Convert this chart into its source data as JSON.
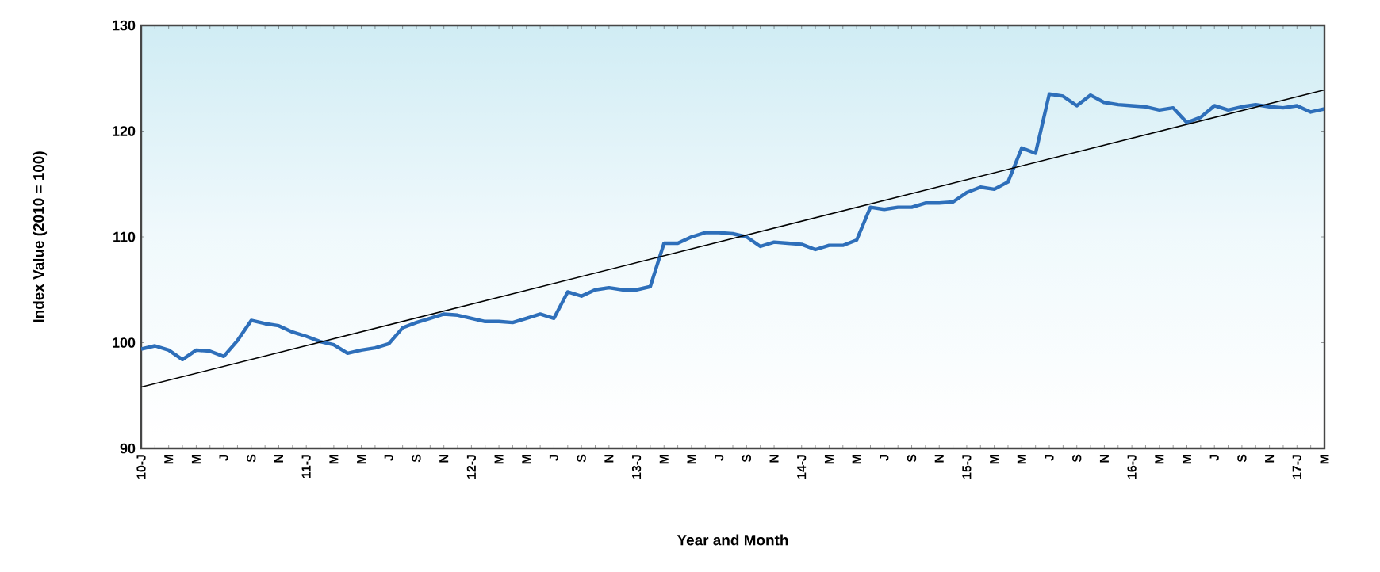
{
  "chart_data": {
    "type": "line",
    "xlabel": "Year and Month",
    "ylabel": "Index Value (2010 = 100)",
    "categories": [
      "10-J",
      null,
      "M",
      null,
      "M",
      null,
      "J",
      null,
      "S",
      null,
      "N",
      null,
      "11-J",
      null,
      "M",
      null,
      "M",
      null,
      "J",
      null,
      "S",
      null,
      "N",
      null,
      "12-J",
      null,
      "M",
      null,
      "M",
      null,
      "J",
      null,
      "S",
      null,
      "N",
      null,
      "13-J",
      null,
      "M",
      null,
      "M",
      null,
      "J",
      null,
      "S",
      null,
      "N",
      null,
      "14-J",
      null,
      "M",
      null,
      "M",
      null,
      "J",
      null,
      "S",
      null,
      "N",
      null,
      "15-J",
      null,
      "M",
      null,
      "M",
      null,
      "J",
      null,
      "S",
      null,
      "N",
      null,
      "16-J",
      null,
      "M",
      null,
      "M",
      null,
      "J",
      null,
      "S",
      null,
      "N",
      null,
      "17-J",
      null,
      "M"
    ],
    "ylim": [
      90,
      130
    ],
    "yticks": [
      90,
      100,
      110,
      120,
      130
    ],
    "grid": false,
    "series": [
      {
        "color": "#2e6fba",
        "values": [
          99.4,
          99.7,
          99.3,
          98.4,
          99.3,
          99.2,
          98.7,
          100.2,
          102.1,
          101.8,
          101.6,
          101.0,
          100.6,
          100.1,
          99.8,
          99.0,
          99.3,
          99.5,
          99.9,
          101.4,
          101.9,
          102.3,
          102.7,
          102.6,
          102.3,
          102.0,
          102.0,
          101.9,
          102.3,
          102.7,
          102.3,
          104.8,
          104.4,
          105.0,
          105.2,
          105.0,
          105.0,
          105.3,
          109.4,
          109.4,
          110.0,
          110.4,
          110.4,
          110.3,
          110.0,
          109.1,
          109.5,
          109.4,
          109.3,
          108.8,
          109.2,
          109.2,
          109.7,
          112.8,
          112.6,
          112.8,
          112.8,
          113.2,
          113.2,
          113.3,
          114.2,
          114.7,
          114.5,
          115.2,
          118.4,
          117.9,
          123.5,
          123.3,
          122.4,
          123.4,
          122.7,
          122.5,
          122.4,
          122.3,
          122.0,
          122.2,
          120.8,
          121.3,
          122.4,
          122.0,
          122.3,
          122.5,
          122.3,
          122.2,
          122.4,
          121.8,
          122.1
        ]
      },
      {
        "type": "line",
        "color": "#000000",
        "values": [
          95.8,
          null,
          null,
          null,
          null,
          null,
          null,
          null,
          null,
          null,
          null,
          null,
          null,
          null,
          null,
          null,
          null,
          null,
          null,
          null,
          null,
          null,
          null,
          null,
          null,
          null,
          null,
          null,
          null,
          null,
          null,
          null,
          null,
          null,
          null,
          null,
          null,
          null,
          null,
          null,
          null,
          null,
          null,
          null,
          null,
          null,
          null,
          null,
          null,
          null,
          null,
          null,
          null,
          null,
          null,
          null,
          null,
          null,
          null,
          null,
          null,
          null,
          null,
          null,
          null,
          null,
          null,
          null,
          null,
          null,
          null,
          null,
          null,
          null,
          null,
          null,
          null,
          null,
          null,
          null,
          null,
          null,
          null,
          null,
          null,
          null,
          123.9
        ]
      }
    ]
  }
}
